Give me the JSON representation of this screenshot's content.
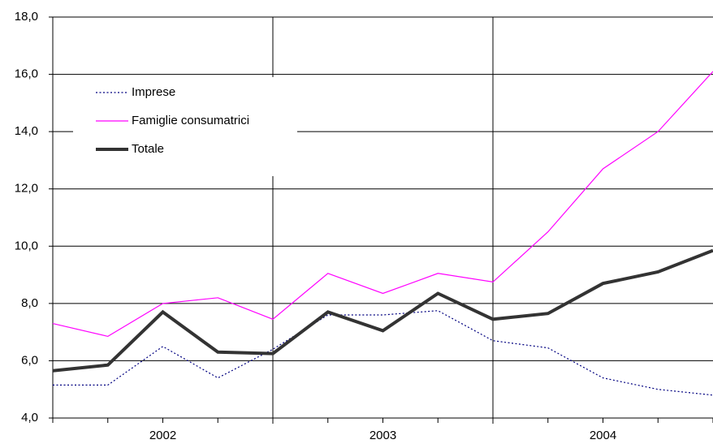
{
  "chart_data": {
    "type": "line",
    "categories": [
      null,
      null,
      "2002",
      null,
      null,
      null,
      "2003",
      null,
      null,
      null,
      "2004",
      null,
      null
    ],
    "series": [
      {
        "name": "Imprese",
        "color": "#000080",
        "dash": "dotted",
        "width": 1.2,
        "values": [
          5.15,
          5.15,
          6.5,
          5.4,
          6.4,
          7.6,
          7.6,
          7.75,
          6.7,
          6.45,
          5.4,
          5.0,
          4.8
        ]
      },
      {
        "name": "Famiglie consumatrici",
        "color": "#ff00ff",
        "width": 1.2,
        "values": [
          7.3,
          6.85,
          8.0,
          8.2,
          7.45,
          9.05,
          8.35,
          9.05,
          8.75,
          10.5,
          12.7,
          14.0,
          16.1
        ]
      },
      {
        "name": "Totale",
        "color": "#333333",
        "width": 4,
        "values": [
          5.65,
          5.85,
          7.7,
          6.3,
          6.25,
          7.7,
          7.05,
          8.35,
          7.45,
          7.65,
          8.7,
          9.1,
          9.85
        ]
      }
    ],
    "ylim": [
      4,
      18
    ],
    "yticks": [
      {
        "value": 4,
        "label": "4,0"
      },
      {
        "value": 6,
        "label": "6,0"
      },
      {
        "value": 8,
        "label": "8,0"
      },
      {
        "value": 10,
        "label": "10,0"
      },
      {
        "value": 12,
        "label": "12,0"
      },
      {
        "value": 14,
        "label": "14,0"
      },
      {
        "value": 16,
        "label": "16,0"
      },
      {
        "value": 18,
        "label": "18,0"
      }
    ],
    "grid": true,
    "legend": "upper left"
  }
}
